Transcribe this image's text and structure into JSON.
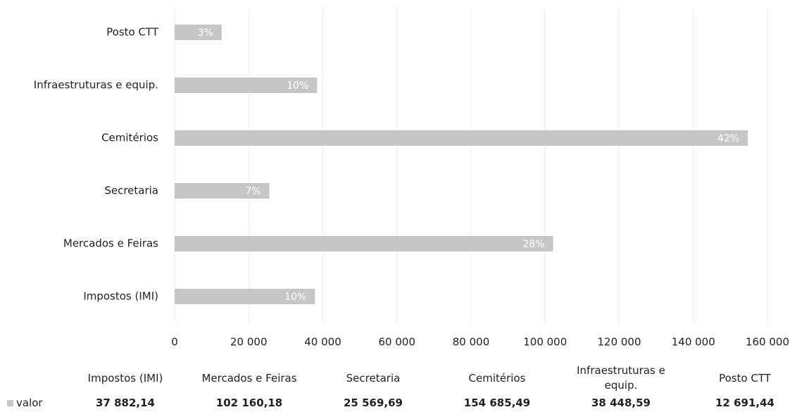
{
  "chart_data": {
    "type": "barh",
    "categories": [
      "Impostos (IMI)",
      "Mercados e Feiras",
      "Secretaria",
      "Cemitérios",
      "Infraestruturas e equip.",
      "Posto CTT"
    ],
    "series": [
      {
        "name": "valor",
        "color": "#c6c6c6",
        "values": [
          37882.14,
          102160.18,
          25569.69,
          154685.49,
          38448.59,
          12691.44
        ],
        "value_labels": [
          "10%",
          "28%",
          "7%",
          "42%",
          "10%",
          "3%"
        ],
        "table_values": [
          "37 882,14",
          "102 160,18",
          "25 569,69",
          "154 685,49",
          "38 448,59",
          "12 691,44"
        ]
      }
    ],
    "xlim": [
      0,
      160000
    ],
    "xticks": [
      0,
      {
        "value": 20000,
        "label": "20 000"
      },
      {
        "value": 40000,
        "label": "40 000"
      },
      {
        "value": 60000,
        "label": "60 000"
      },
      {
        "value": 80000,
        "label": "80 000"
      },
      {
        "value": 100000,
        "label": "100 000"
      },
      {
        "value": 120000,
        "label": "120 000"
      },
      {
        "value": 140000,
        "label": "140 000"
      },
      {
        "value": 160000,
        "label": "160 000"
      }
    ],
    "grid": true
  }
}
